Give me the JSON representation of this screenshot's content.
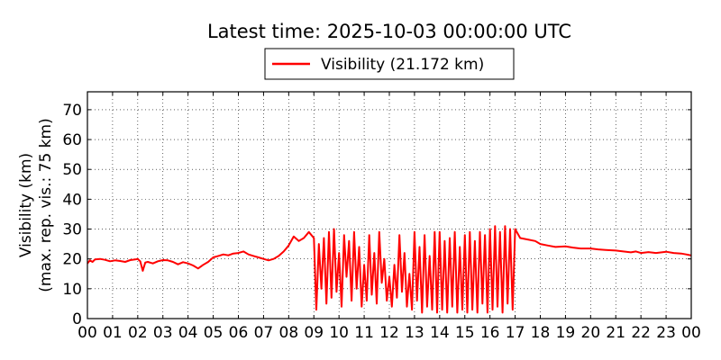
{
  "chart_data": {
    "type": "line",
    "title": "Latest time: 2025-10-03 00:00:00 UTC",
    "ylabel_line1": "Visibility (km)",
    "ylabel_line2": "(max. rep. vis.: 75 km)",
    "xlabel": "",
    "xlim": [
      0,
      24
    ],
    "ylim": [
      0,
      76
    ],
    "grid": true,
    "legend_position": "top-center",
    "x_tick_labels": [
      "00",
      "01",
      "02",
      "03",
      "04",
      "05",
      "06",
      "07",
      "08",
      "09",
      "10",
      "11",
      "12",
      "13",
      "14",
      "15",
      "16",
      "17",
      "18",
      "19",
      "20",
      "21",
      "22",
      "23",
      "00"
    ],
    "y_ticks": [
      0,
      10,
      20,
      30,
      40,
      50,
      60,
      70
    ],
    "series": [
      {
        "name": "Visibility (21.172 km)",
        "color": "#ff0000",
        "x_unit": "hours UTC",
        "x": [
          0,
          0.1,
          0.2,
          0.3,
          0.5,
          0.7,
          0.9,
          1.1,
          1.3,
          1.5,
          1.7,
          1.9,
          2.0,
          2.1,
          2.2,
          2.3,
          2.4,
          2.6,
          2.8,
          3.0,
          3.2,
          3.4,
          3.6,
          3.8,
          4.0,
          4.2,
          4.4,
          4.6,
          4.8,
          5.0,
          5.2,
          5.4,
          5.6,
          5.8,
          6.0,
          6.2,
          6.4,
          6.6,
          6.8,
          7.0,
          7.2,
          7.4,
          7.6,
          7.8,
          8.0,
          8.2,
          8.4,
          8.6,
          8.8,
          9.0,
          9.1,
          9.2,
          9.3,
          9.4,
          9.5,
          9.6,
          9.7,
          9.8,
          9.9,
          10.0,
          10.1,
          10.2,
          10.3,
          10.4,
          10.5,
          10.6,
          10.7,
          10.8,
          10.9,
          11.0,
          11.1,
          11.2,
          11.3,
          11.4,
          11.5,
          11.6,
          11.7,
          11.8,
          11.9,
          12.0,
          12.1,
          12.2,
          12.3,
          12.4,
          12.5,
          12.6,
          12.7,
          12.8,
          12.9,
          13.0,
          13.1,
          13.2,
          13.3,
          13.4,
          13.5,
          13.6,
          13.7,
          13.8,
          13.9,
          14.0,
          14.1,
          14.2,
          14.3,
          14.4,
          14.5,
          14.6,
          14.7,
          14.8,
          14.9,
          15.0,
          15.1,
          15.2,
          15.3,
          15.4,
          15.5,
          15.6,
          15.7,
          15.8,
          15.9,
          16.0,
          16.1,
          16.2,
          16.3,
          16.4,
          16.5,
          16.6,
          16.7,
          16.8,
          16.9,
          17.0,
          17.2,
          17.5,
          17.8,
          18.0,
          18.3,
          18.6,
          19.0,
          19.3,
          19.6,
          20.0,
          20.3,
          20.6,
          21.0,
          21.3,
          21.6,
          21.8,
          22.0,
          22.3,
          22.6,
          23.0,
          23.3,
          23.6,
          23.8,
          24.0
        ],
        "y": [
          18.5,
          19.5,
          19.0,
          19.8,
          20.0,
          19.7,
          19.2,
          19.5,
          19.3,
          19.0,
          19.6,
          19.8,
          20.0,
          19.2,
          16.0,
          18.8,
          19.0,
          18.5,
          19.2,
          19.6,
          19.5,
          19.0,
          18.2,
          18.9,
          18.5,
          17.8,
          16.8,
          18.0,
          19.0,
          20.5,
          21.0,
          21.5,
          21.2,
          21.8,
          22.0,
          22.5,
          21.5,
          21.0,
          20.5,
          20.0,
          19.5,
          20.0,
          21.0,
          22.5,
          24.5,
          27.5,
          26.0,
          27.0,
          29.0,
          27.0,
          3.0,
          25.0,
          10.0,
          27.0,
          5.0,
          29.0,
          7.0,
          30.0,
          9.0,
          22.0,
          4.0,
          28.0,
          14.0,
          26.0,
          6.0,
          29.0,
          10.0,
          24.0,
          4.0,
          18.0,
          6.0,
          28.0,
          8.0,
          22.0,
          5.0,
          29.0,
          12.0,
          20.0,
          6.0,
          14.0,
          4.0,
          18.0,
          7.0,
          28.0,
          9.0,
          22.0,
          4.0,
          15.0,
          3.0,
          29.0,
          6.0,
          24.0,
          2.0,
          28.0,
          4.0,
          21.0,
          3.0,
          29.0,
          2.0,
          29.0,
          3.0,
          26.0,
          2.0,
          27.0,
          4.0,
          29.0,
          2.0,
          24.0,
          3.0,
          28.0,
          2.0,
          29.0,
          3.0,
          26.0,
          2.0,
          29.0,
          5.0,
          28.0,
          2.0,
          30.0,
          3.0,
          31.0,
          4.0,
          29.0,
          2.0,
          31.0,
          5.0,
          30.0,
          3.0,
          30.0,
          27.0,
          26.5,
          26.0,
          25.0,
          24.5,
          24.0,
          24.2,
          23.8,
          23.5,
          23.5,
          23.2,
          23.0,
          22.8,
          22.5,
          22.2,
          22.5,
          22.0,
          22.3,
          22.0,
          22.4,
          22.0,
          21.8,
          21.5,
          21.172
        ]
      }
    ]
  }
}
